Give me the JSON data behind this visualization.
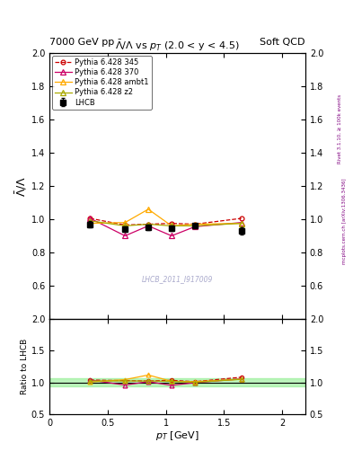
{
  "title_top_left": "7000 GeV pp",
  "title_top_right": "Soft QCD",
  "plot_title": "$\\bar{\\Lambda}/\\Lambda$ vs $p_T$ (2.0 < y < 4.5)",
  "ylabel_main": "bar($\\Lambda$)/$\\Lambda$",
  "ylabel_ratio": "Ratio to LHCB",
  "xlabel": "$p_T$ [GeV]",
  "watermark": "LHCB_2011_I917009",
  "right_label": "mcplots.cern.ch [arXiv:1306.3436]",
  "right_label2": "Rivet 3.1.10, ≥ 100k events",
  "xlim": [
    0.0,
    2.2
  ],
  "ylim_main": [
    0.4,
    2.0
  ],
  "ylim_ratio": [
    0.5,
    2.0
  ],
  "lhcb_x": [
    0.35,
    0.65,
    0.85,
    1.05,
    1.25,
    1.65
  ],
  "lhcb_y": [
    0.97,
    0.94,
    0.95,
    0.945,
    0.96,
    0.93
  ],
  "lhcb_yerr": [
    0.02,
    0.015,
    0.015,
    0.015,
    0.015,
    0.02
  ],
  "pythia345_x": [
    0.35,
    0.65,
    0.85,
    1.05,
    1.25,
    1.65
  ],
  "pythia345_y": [
    1.005,
    0.965,
    0.97,
    0.975,
    0.97,
    1.005
  ],
  "pythia370_x": [
    0.35,
    0.65,
    0.85,
    1.05,
    1.25,
    1.65
  ],
  "pythia370_y": [
    1.005,
    0.9,
    0.96,
    0.9,
    0.955,
    0.98
  ],
  "pythia_ambt1_x": [
    0.35,
    0.65,
    0.85,
    1.05,
    1.25,
    1.65
  ],
  "pythia_ambt1_y": [
    0.975,
    0.98,
    1.06,
    0.96,
    0.97,
    0.975
  ],
  "pythia_z2_x": [
    0.35,
    0.65,
    0.85,
    1.05,
    1.25,
    1.65
  ],
  "pythia_z2_y": [
    0.99,
    0.96,
    0.97,
    0.96,
    0.96,
    0.975
  ],
  "color_lhcb": "#000000",
  "color_345": "#cc0000",
  "color_370": "#cc0066",
  "color_ambt1": "#ffaa00",
  "color_z2": "#aaaa00",
  "lhcb_error_band_color": "#90ee90",
  "lhcb_error_band_alpha": 0.6,
  "ratio_band_lo": 0.93,
  "ratio_band_hi": 1.07,
  "yticks_main": [
    0.6,
    0.8,
    1.0,
    1.2,
    1.4,
    1.6,
    1.8,
    2.0
  ],
  "yticks_ratio": [
    0.5,
    1.0,
    1.5,
    2.0
  ],
  "xticks": [
    0.0,
    0.5,
    1.0,
    1.5,
    2.0
  ]
}
